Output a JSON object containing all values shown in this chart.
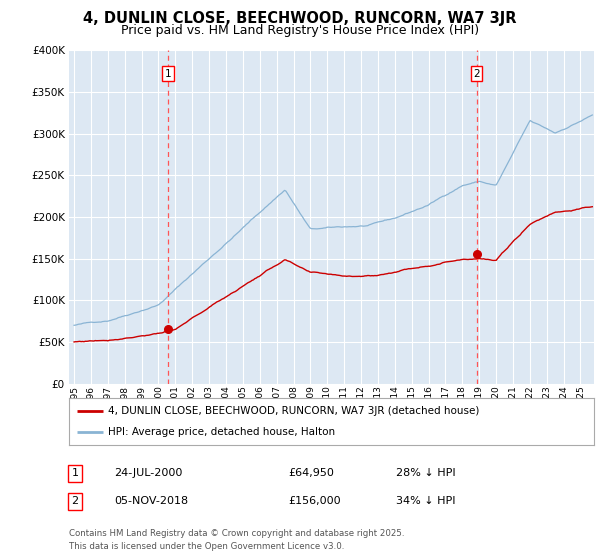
{
  "title": "4, DUNLIN CLOSE, BEECHWOOD, RUNCORN, WA7 3JR",
  "subtitle": "Price paid vs. HM Land Registry's House Price Index (HPI)",
  "legend_line1": "4, DUNLIN CLOSE, BEECHWOOD, RUNCORN, WA7 3JR (detached house)",
  "legend_line2": "HPI: Average price, detached house, Halton",
  "footnote1": "Contains HM Land Registry data © Crown copyright and database right 2025.",
  "footnote2": "This data is licensed under the Open Government Licence v3.0.",
  "sale1_label": "1",
  "sale1_date": "24-JUL-2000",
  "sale1_price": "£64,950",
  "sale1_hpi": "28% ↓ HPI",
  "sale2_label": "2",
  "sale2_date": "05-NOV-2018",
  "sale2_price": "£156,000",
  "sale2_hpi": "34% ↓ HPI",
  "sale1_x": 2000.56,
  "sale1_y": 64950,
  "sale2_x": 2018.84,
  "sale2_y": 156000,
  "vline1_x": 2000.56,
  "vline2_x": 2018.84,
  "ylim": [
    0,
    400000
  ],
  "xlim_start": 1994.7,
  "xlim_end": 2025.8,
  "bg_color": "#dde8f3",
  "hpi_color": "#8ab4d4",
  "price_color": "#cc0000",
  "vline_color": "#ff5555",
  "grid_color": "#ffffff",
  "title_fontsize": 10.5,
  "subtitle_fontsize": 9
}
